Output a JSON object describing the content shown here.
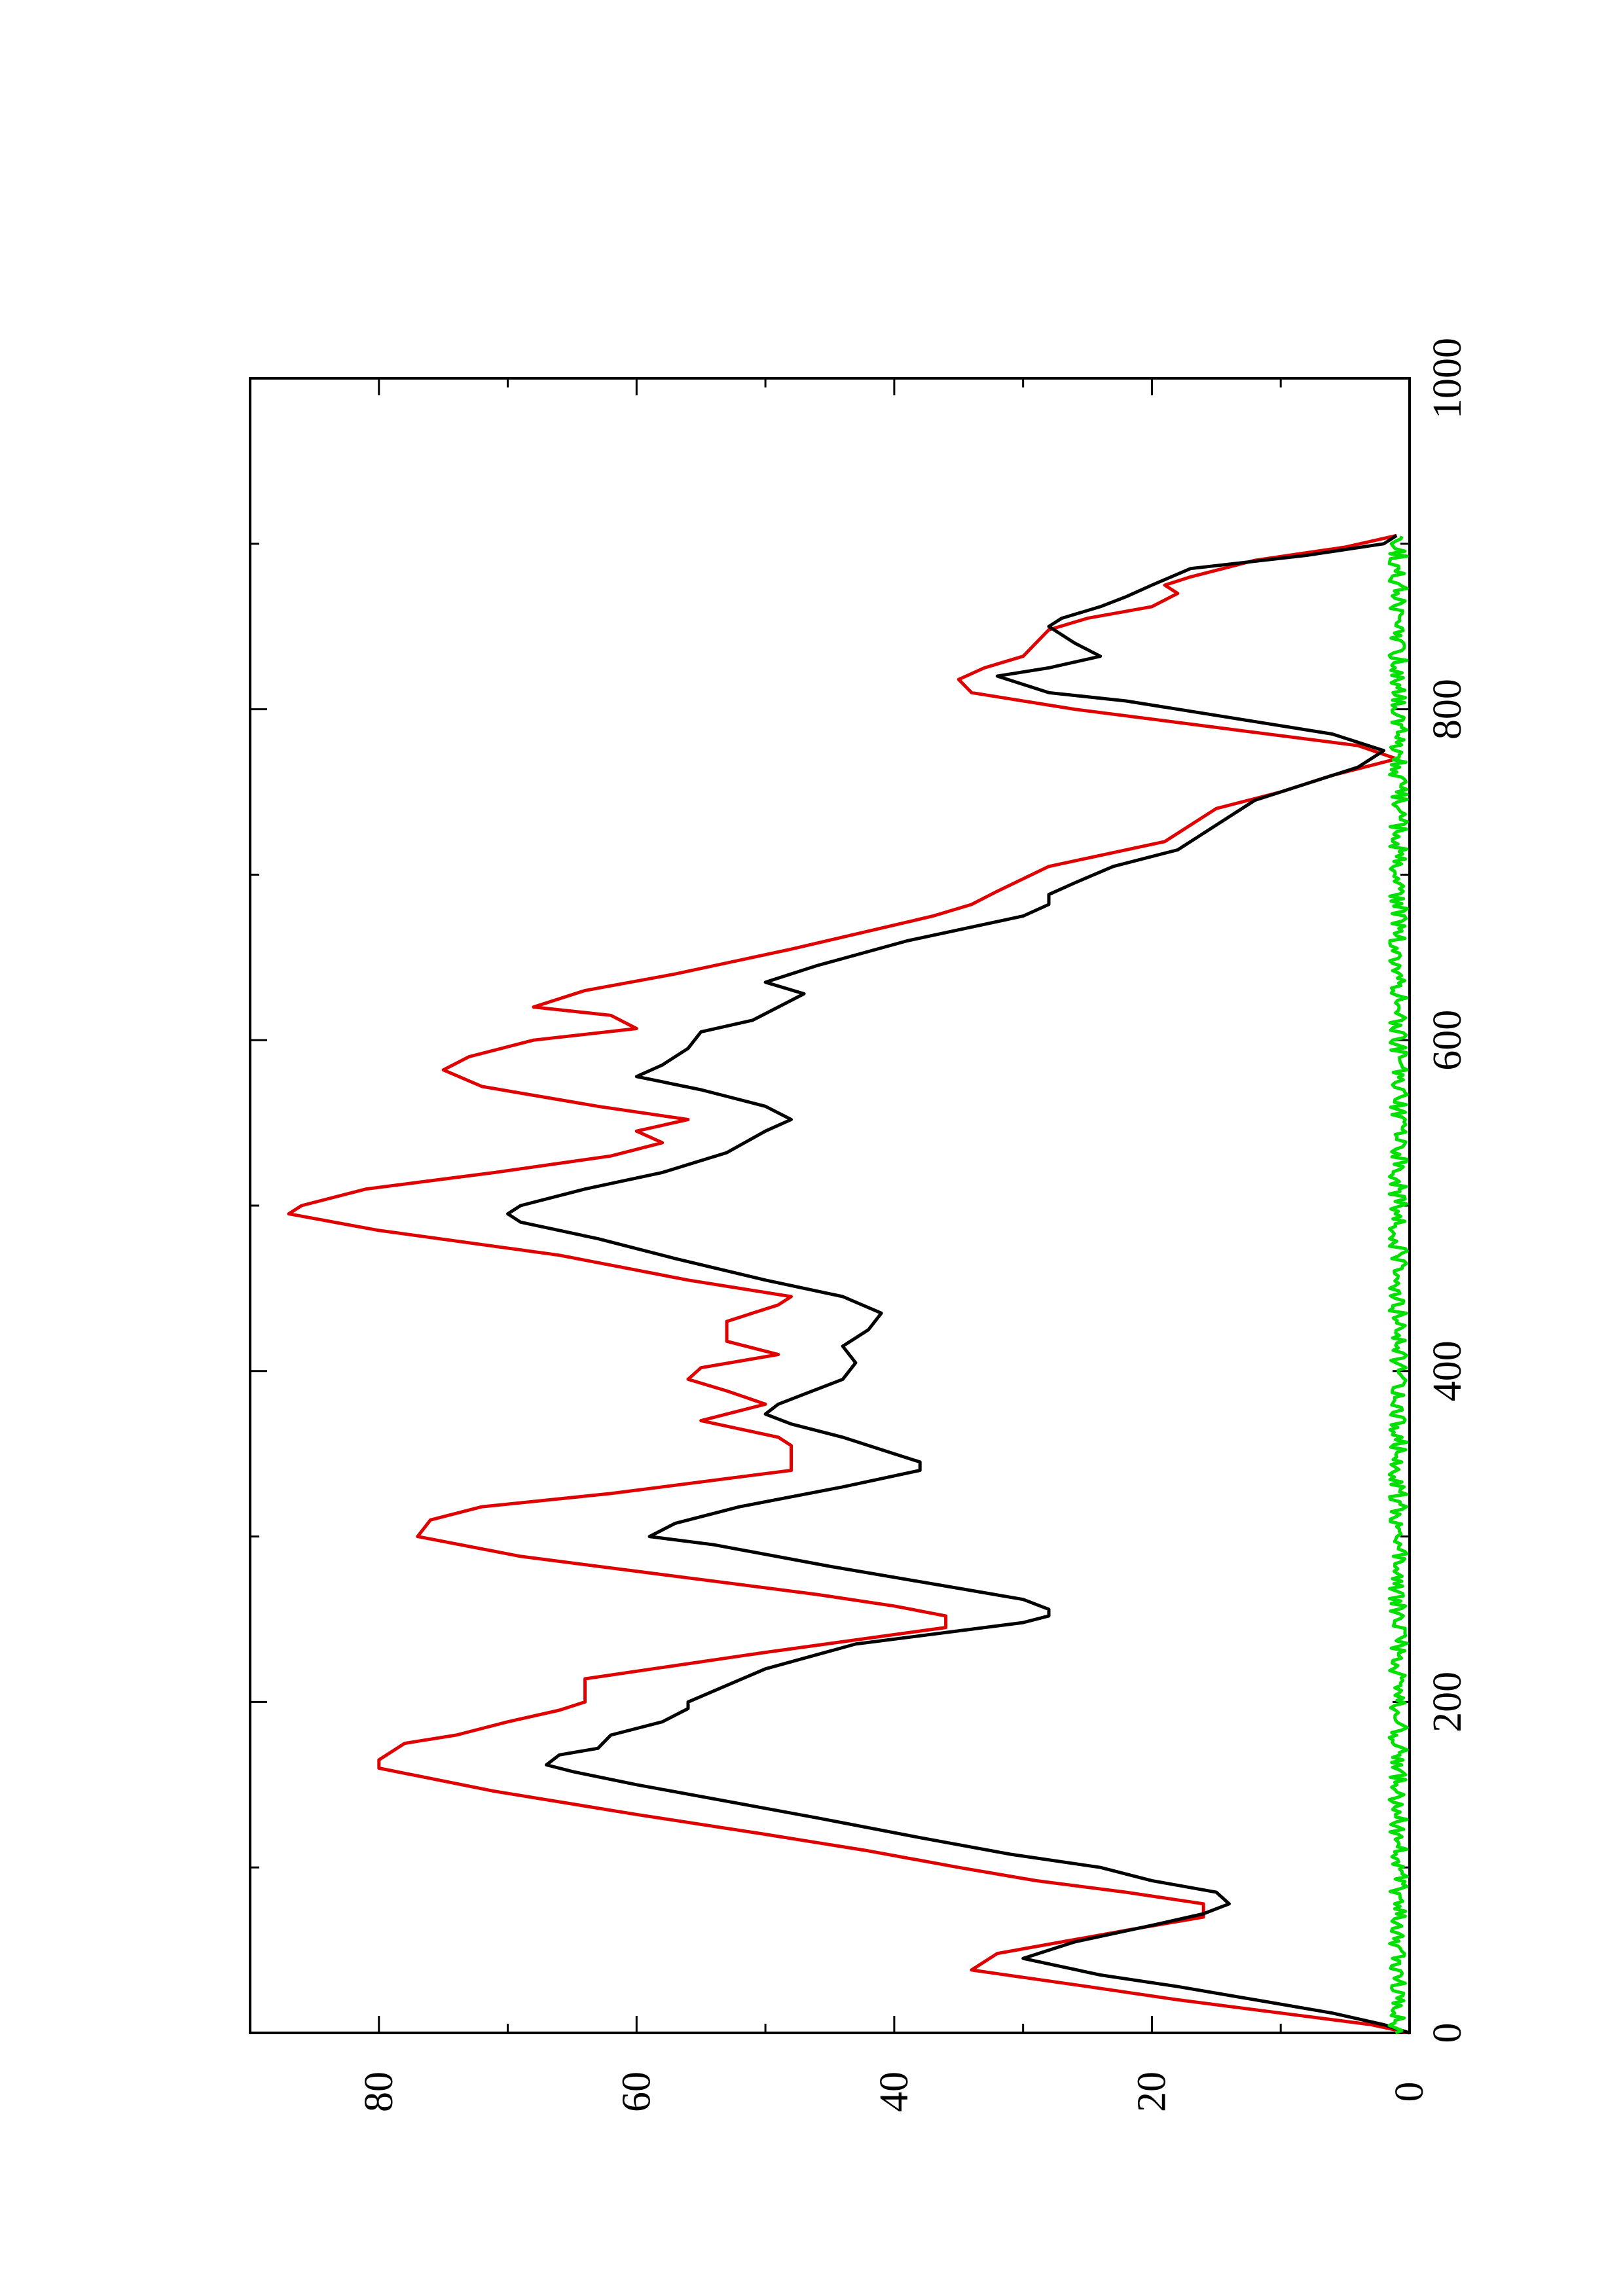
{
  "chart_data": {
    "type": "line",
    "orientation": "rotated-90-ccw",
    "xlim": [
      0,
      1000
    ],
    "ylim": [
      0,
      90
    ],
    "x_ticks": [
      "0",
      "200",
      "400",
      "600",
      "800",
      "1000"
    ],
    "x_minor_ticks": [
      100,
      300,
      500,
      700,
      900
    ],
    "y_ticks": [
      "0",
      "20",
      "40",
      "60",
      "80"
    ],
    "y_minor_ticks": [
      10,
      30,
      50,
      70,
      90
    ],
    "xlabel": "",
    "ylabel": "",
    "title": "",
    "grid": false,
    "series": [
      {
        "color": "#e00000",
        "x": [
          0,
          5,
          12,
          20,
          28,
          38,
          48,
          55,
          62,
          70,
          78,
          85,
          92,
          100,
          110,
          120,
          132,
          146,
          160,
          165,
          175,
          180,
          188,
          195,
          200,
          205,
          214,
          230,
          245,
          252,
          258,
          265,
          275,
          288,
          300,
          310,
          318,
          326,
          340,
          345,
          355,
          360,
          370,
          380,
          388,
          395,
          402,
          410,
          418,
          430,
          440,
          445,
          455,
          470,
          485,
          495,
          500,
          510,
          520,
          530,
          538,
          545,
          552,
          560,
          572,
          582,
          590,
          600,
          607,
          615,
          620,
          630,
          640,
          655,
          675,
          682,
          690,
          705,
          720,
          740,
          750,
          760,
          770,
          778,
          790,
          800,
          810,
          818,
          825,
          832,
          840,
          848,
          855,
          862,
          870,
          875,
          880,
          890,
          898,
          905
        ],
        "values": [
          0,
          3,
          10,
          18,
          25,
          34,
          32,
          27,
          22,
          16,
          16,
          22,
          29,
          35,
          42,
          50,
          60,
          71,
          80,
          80,
          78,
          74,
          70,
          66,
          64,
          64,
          64,
          50,
          36,
          36,
          40,
          46,
          56,
          69,
          77,
          76,
          72,
          62,
          48,
          48,
          48,
          49,
          55,
          50,
          53,
          56,
          55,
          49,
          53,
          53,
          49,
          48,
          56,
          66,
          80,
          87,
          86,
          81,
          71,
          62,
          58,
          60,
          56,
          63,
          72,
          75,
          73,
          68,
          60,
          62,
          68,
          64,
          57,
          48,
          37,
          34,
          32,
          28,
          19,
          15,
          10,
          6,
          1,
          4,
          16,
          26,
          34,
          35,
          33,
          30,
          29,
          28,
          25,
          20,
          18,
          19,
          17,
          12,
          5,
          1
        ]
      },
      {
        "color": "#000000",
        "x": [
          0,
          5,
          12,
          20,
          28,
          35,
          45,
          55,
          65,
          72,
          78,
          85,
          92,
          100,
          108,
          118,
          130,
          140,
          150,
          158,
          162,
          168,
          172,
          180,
          188,
          196,
          200,
          210,
          220,
          235,
          248,
          252,
          256,
          262,
          270,
          282,
          295,
          300,
          308,
          318,
          330,
          340,
          345,
          350,
          360,
          368,
          374,
          380,
          386,
          395,
          405,
          415,
          425,
          435,
          445,
          455,
          468,
          480,
          490,
          495,
          500,
          510,
          520,
          532,
          545,
          552,
          560,
          570,
          578,
          585,
          595,
          605,
          612,
          620,
          628,
          635,
          645,
          660,
          675,
          682,
          688,
          695,
          705,
          715,
          725,
          735,
          745,
          755,
          765,
          775,
          785,
          795,
          805,
          810,
          820,
          825,
          832,
          840,
          850,
          855,
          862,
          868,
          875,
          885,
          893,
          900,
          905
        ],
        "values": [
          0,
          2,
          6,
          12,
          18,
          24,
          30,
          26,
          20,
          16,
          14,
          15,
          20,
          24,
          31,
          38,
          46,
          53,
          60,
          65,
          67,
          66,
          63,
          62,
          58,
          56,
          56,
          53,
          50,
          43,
          30,
          28,
          28,
          30,
          36,
          45,
          54,
          59,
          57,
          52,
          44,
          38,
          38,
          40,
          44,
          48,
          50,
          49,
          47,
          44,
          43,
          44,
          42,
          41,
          44,
          50,
          57,
          63,
          69,
          70,
          69,
          64,
          58,
          53,
          50,
          48,
          50,
          55,
          60,
          58,
          56,
          55,
          51,
          49,
          47,
          50,
          46,
          39,
          30,
          28,
          28,
          26,
          23,
          18,
          16,
          14,
          12,
          8,
          4,
          2,
          6,
          14,
          22,
          28,
          32,
          28,
          24,
          26,
          28,
          27,
          24,
          22,
          20,
          17,
          8,
          2,
          1
        ]
      },
      {
        "color": "#00e000",
        "noise": true,
        "x_range": [
          0,
          905
        ],
        "baseline": 0.6,
        "amplitude": 1.4
      }
    ]
  }
}
